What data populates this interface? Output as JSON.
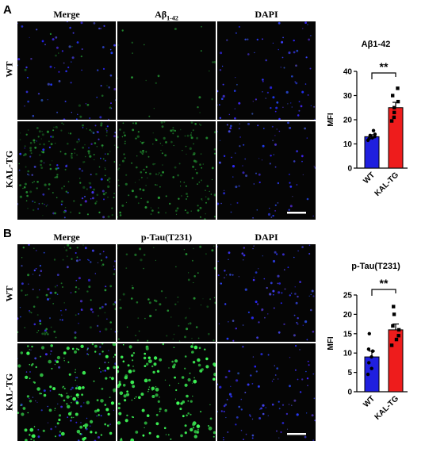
{
  "panels": [
    {
      "letter": "A",
      "columns": [
        "Merge",
        "Aβ1-42",
        "DAPI"
      ],
      "col2_main": "Aβ",
      "col2_sub": "1-42",
      "rows": [
        "WT",
        "KAL-TG"
      ],
      "chart_title": "Aβ1-42"
    },
    {
      "letter": "B",
      "columns": [
        "Merge",
        "p-Tau(T231)",
        "DAPI"
      ],
      "rows": [
        "WT",
        "KAL-TG"
      ],
      "chart_title": "p-Tau(T231)"
    }
  ],
  "chart_data": [
    {
      "type": "bar",
      "title": "Aβ1-42",
      "ylabel": "MFI",
      "xlabel": "",
      "categories": [
        "WT",
        "KAL-TG"
      ],
      "values": [
        13,
        25
      ],
      "errors": [
        0.8,
        2.2
      ],
      "points": [
        [
          11.5,
          12.2,
          12.5,
          13.0,
          13.5,
          14.0,
          15.5
        ],
        [
          19.5,
          21.0,
          23.0,
          25.0,
          27.5,
          30.0,
          33.0
        ]
      ],
      "colors": [
        "#1f1fdf",
        "#ee1c1c"
      ],
      "ylim": [
        0,
        40
      ],
      "yticks": [
        0,
        10,
        20,
        30,
        40
      ],
      "significance": "**"
    },
    {
      "type": "bar",
      "title": "p-Tau(T231)",
      "ylabel": "MFI",
      "xlabel": "",
      "categories": [
        "WT",
        "KAL-TG"
      ],
      "values": [
        9,
        16
      ],
      "errors": [
        1.5,
        1.5
      ],
      "points": [
        [
          4.5,
          6.0,
          7.5,
          9.0,
          10.5,
          11.0,
          15.0
        ],
        [
          12.0,
          13.5,
          14.5,
          16.0,
          17.0,
          20.0,
          22.0
        ]
      ],
      "colors": [
        "#1f1fdf",
        "#ee1c1c"
      ],
      "ylim": [
        0,
        25
      ],
      "yticks": [
        0,
        5,
        10,
        15,
        20,
        25
      ],
      "significance": "**"
    }
  ]
}
